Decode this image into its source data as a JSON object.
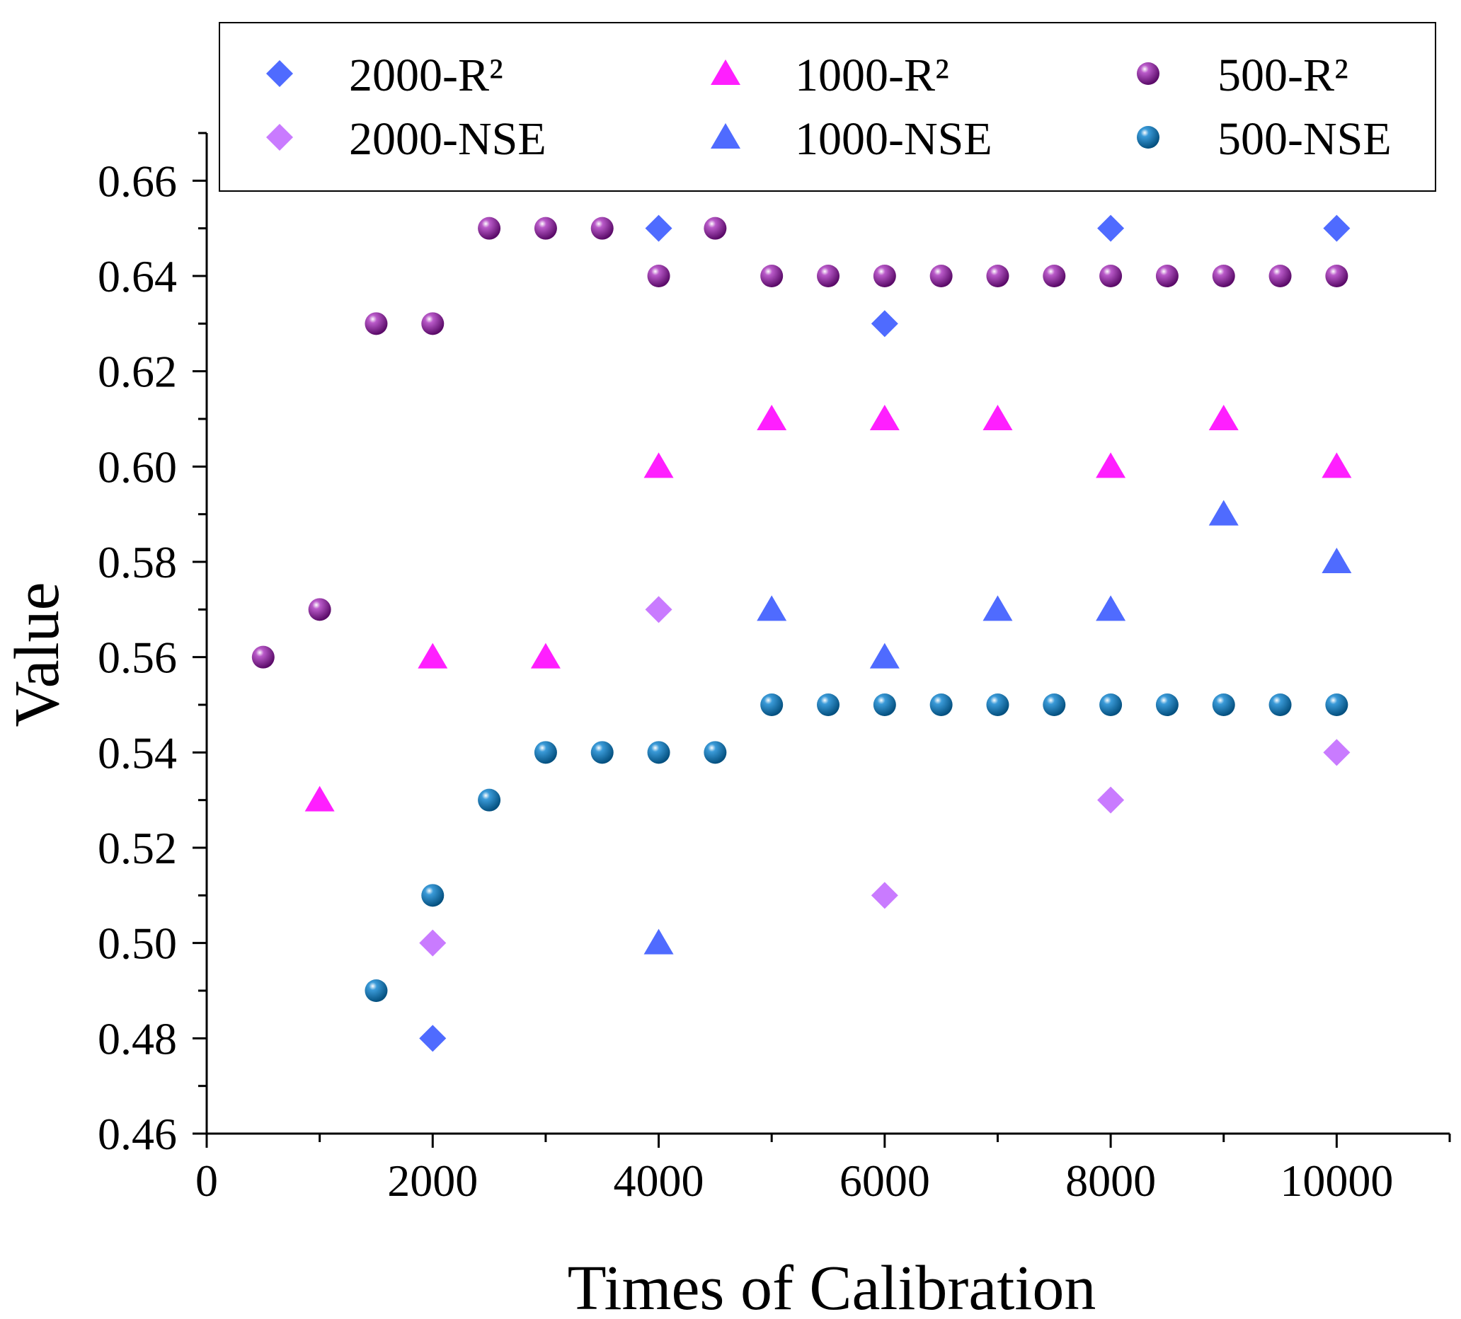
{
  "chart_data": {
    "type": "scatter",
    "title": "",
    "xlabel": "Times of Calibration",
    "ylabel": "Value",
    "xlim": [
      0,
      11000
    ],
    "ylim": [
      0.46,
      0.67
    ],
    "x_ticks": [
      0,
      2000,
      4000,
      6000,
      8000,
      10000
    ],
    "x_tick_labels": [
      "0",
      "2000",
      "4000",
      "6000",
      "8000",
      "10000"
    ],
    "x_minor_step": 1000,
    "y_ticks": [
      0.46,
      0.48,
      0.5,
      0.52,
      0.54,
      0.56,
      0.58,
      0.6,
      0.62,
      0.64,
      0.66
    ],
    "y_tick_labels": [
      "0.46",
      "0.48",
      "0.50",
      "0.52",
      "0.54",
      "0.56",
      "0.58",
      "0.60",
      "0.62",
      "0.64",
      "0.66"
    ],
    "y_minor_step": 0.01,
    "grid": false,
    "legend_position": "top",
    "series": [
      {
        "name": "2000-R²",
        "marker": "diamond",
        "color": "#4f6bff",
        "x": [
          2000,
          4000,
          6000,
          8000,
          10000
        ],
        "y": [
          0.48,
          0.65,
          0.63,
          0.65,
          0.65
        ]
      },
      {
        "name": "2000-NSE",
        "marker": "diamond",
        "color": "#c97bff",
        "x": [
          2000,
          4000,
          6000,
          8000,
          10000
        ],
        "y": [
          0.5,
          0.57,
          0.51,
          0.53,
          0.54
        ]
      },
      {
        "name": "1000-R²",
        "marker": "triangle",
        "color": "#ff1fff",
        "x": [
          1000,
          2000,
          3000,
          4000,
          5000,
          6000,
          7000,
          8000,
          9000,
          10000
        ],
        "y": [
          0.53,
          0.56,
          0.56,
          0.6,
          0.61,
          0.61,
          0.61,
          0.6,
          0.61,
          0.6
        ]
      },
      {
        "name": "1000-NSE",
        "marker": "triangle",
        "color": "#4f6bff",
        "x": [
          4000,
          5000,
          6000,
          7000,
          8000,
          9000,
          10000
        ],
        "y": [
          0.5,
          0.57,
          0.56,
          0.57,
          0.57,
          0.59,
          0.58
        ]
      },
      {
        "name": "500-R²",
        "marker": "sphere",
        "color": "#7a0f8c",
        "x": [
          500,
          1000,
          1500,
          2000,
          2500,
          3000,
          3500,
          4000,
          4500,
          5000,
          5500,
          6000,
          6500,
          7000,
          7500,
          8000,
          8500,
          9000,
          9500,
          10000
        ],
        "y": [
          0.56,
          0.57,
          0.63,
          0.63,
          0.65,
          0.65,
          0.65,
          0.64,
          0.65,
          0.64,
          0.64,
          0.64,
          0.64,
          0.64,
          0.64,
          0.64,
          0.64,
          0.64,
          0.64,
          0.64
        ]
      },
      {
        "name": "500-NSE",
        "marker": "sphere",
        "color": "#0a6aa8",
        "x": [
          1500,
          2000,
          2500,
          3000,
          3500,
          4000,
          4500,
          5000,
          5500,
          6000,
          6500,
          7000,
          7500,
          8000,
          8500,
          9000,
          9500,
          10000
        ],
        "y": [
          0.49,
          0.51,
          0.53,
          0.54,
          0.54,
          0.54,
          0.54,
          0.55,
          0.55,
          0.55,
          0.55,
          0.55,
          0.55,
          0.55,
          0.55,
          0.55,
          0.55,
          0.55
        ]
      }
    ]
  }
}
